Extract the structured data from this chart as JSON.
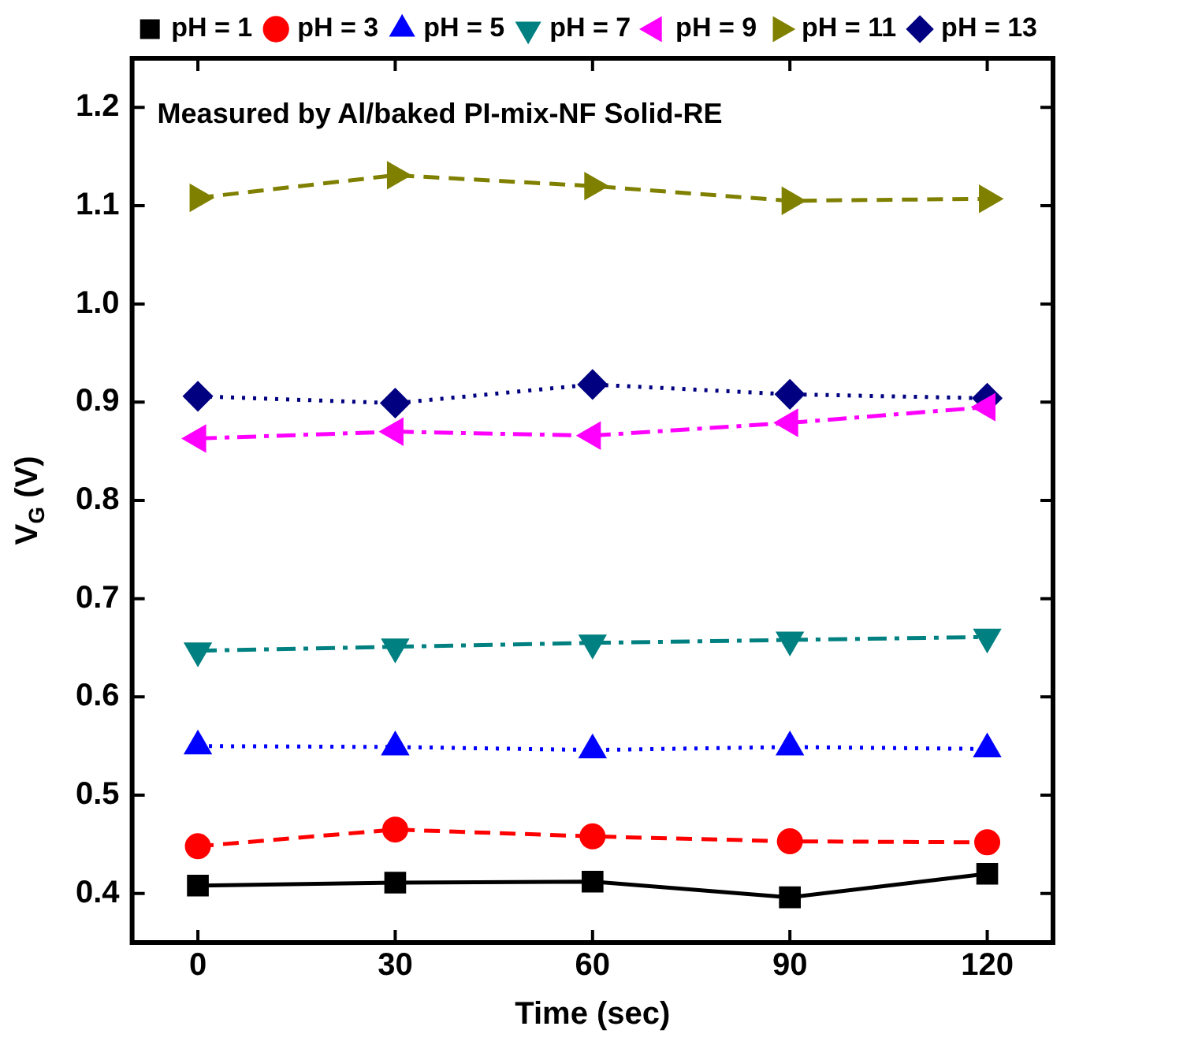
{
  "chart_data": {
    "type": "line",
    "xlabel": "Time (sec)",
    "ylabel": "V$_{G}$ (V)",
    "x": [
      0,
      30,
      60,
      90,
      120
    ],
    "series": [
      {
        "name": "pH = 1",
        "color": "#000000",
        "marker": "square",
        "line_style": "solid",
        "values": [
          0.408,
          0.411,
          0.412,
          0.396,
          0.42
        ]
      },
      {
        "name": "pH = 3",
        "color": "#ff0000",
        "marker": "circle",
        "line_style": "dashed",
        "values": [
          0.448,
          0.465,
          0.458,
          0.453,
          0.452
        ]
      },
      {
        "name": "pH = 5",
        "color": "#0000ff",
        "marker": "triangle",
        "line_style": "dotted",
        "values": [
          0.55,
          0.549,
          0.546,
          0.549,
          0.547
        ]
      },
      {
        "name": "pH = 7",
        "color": "#008080",
        "marker": "triangle-down",
        "line_style": "dashdot",
        "values": [
          0.647,
          0.651,
          0.655,
          0.658,
          0.661
        ]
      },
      {
        "name": "pH = 9",
        "color": "#ff00ff",
        "marker": "triangle-left",
        "line_style": "dashdot",
        "values": [
          0.863,
          0.87,
          0.866,
          0.879,
          0.895
        ]
      },
      {
        "name": "pH = 11",
        "color": "#808000",
        "marker": "triangle-right",
        "line_style": "dashed",
        "values": [
          1.108,
          1.131,
          1.12,
          1.105,
          1.107
        ]
      },
      {
        "name": "pH = 13",
        "color": "#000080",
        "marker": "diamond",
        "line_style": "dotted",
        "values": [
          0.906,
          0.899,
          0.918,
          0.908,
          0.904
        ]
      }
    ],
    "xlim": [
      -10,
      130
    ],
    "xticks": [
      0,
      30,
      60,
      90,
      120
    ],
    "ylim": [
      0.35,
      1.25
    ],
    "yticks": [
      0.4,
      0.5,
      0.6,
      0.7,
      0.8,
      0.9,
      {
        "value": 1,
        "label": "1.0"
      },
      1.1,
      1.2
    ],
    "grid": false,
    "legend": "top right",
    "annotations": [
      "Measured by Al/baked PI-mix-NF Solid-RE"
    ]
  }
}
